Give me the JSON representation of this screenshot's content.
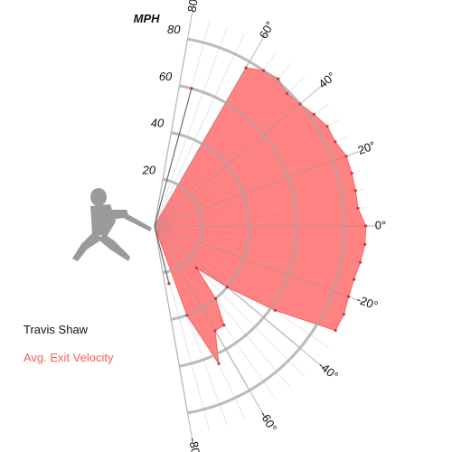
{
  "chart_data": {
    "type": "polar-area",
    "unit_label": "MPH",
    "ring_values": [
      20,
      40,
      60,
      80
    ],
    "ring_labels": [
      "20",
      "40",
      "60",
      "80"
    ],
    "angle_ticks": [
      80,
      60,
      40,
      20,
      0,
      -20,
      -40,
      -60,
      -80
    ],
    "angle_tick_labels": [
      "80°",
      "60°",
      "40°",
      "20°",
      "0°",
      "-20°",
      "-40°",
      "-60°",
      "-80°"
    ],
    "rmax": 80,
    "series": [
      {
        "name": "Avg. Exit Velocity",
        "color": "#ff5a5a",
        "angles": [
          60,
          55,
          50,
          45,
          40,
          35,
          30,
          25,
          20,
          15,
          10,
          5,
          0,
          -5,
          -10,
          -15,
          -20,
          -25,
          -30,
          -35,
          -40,
          -45,
          -50,
          -55,
          -60,
          -65,
          -70,
          -75
        ],
        "values": [
          77,
          80,
          81,
          79,
          80,
          82,
          84,
          84,
          86,
          86,
          86,
          86,
          89,
          89,
          88,
          87,
          87,
          88,
          88,
          62,
          40,
          25,
          40,
          51,
          51,
          64,
          40,
          0
        ]
      }
    ],
    "grid": true
  },
  "legend": {
    "player": "Travis Shaw",
    "series_label": "Avg. Exit Velocity",
    "series_color": "#ff5a5a"
  },
  "icons": {
    "batter": "batter-silhouette-icon"
  }
}
